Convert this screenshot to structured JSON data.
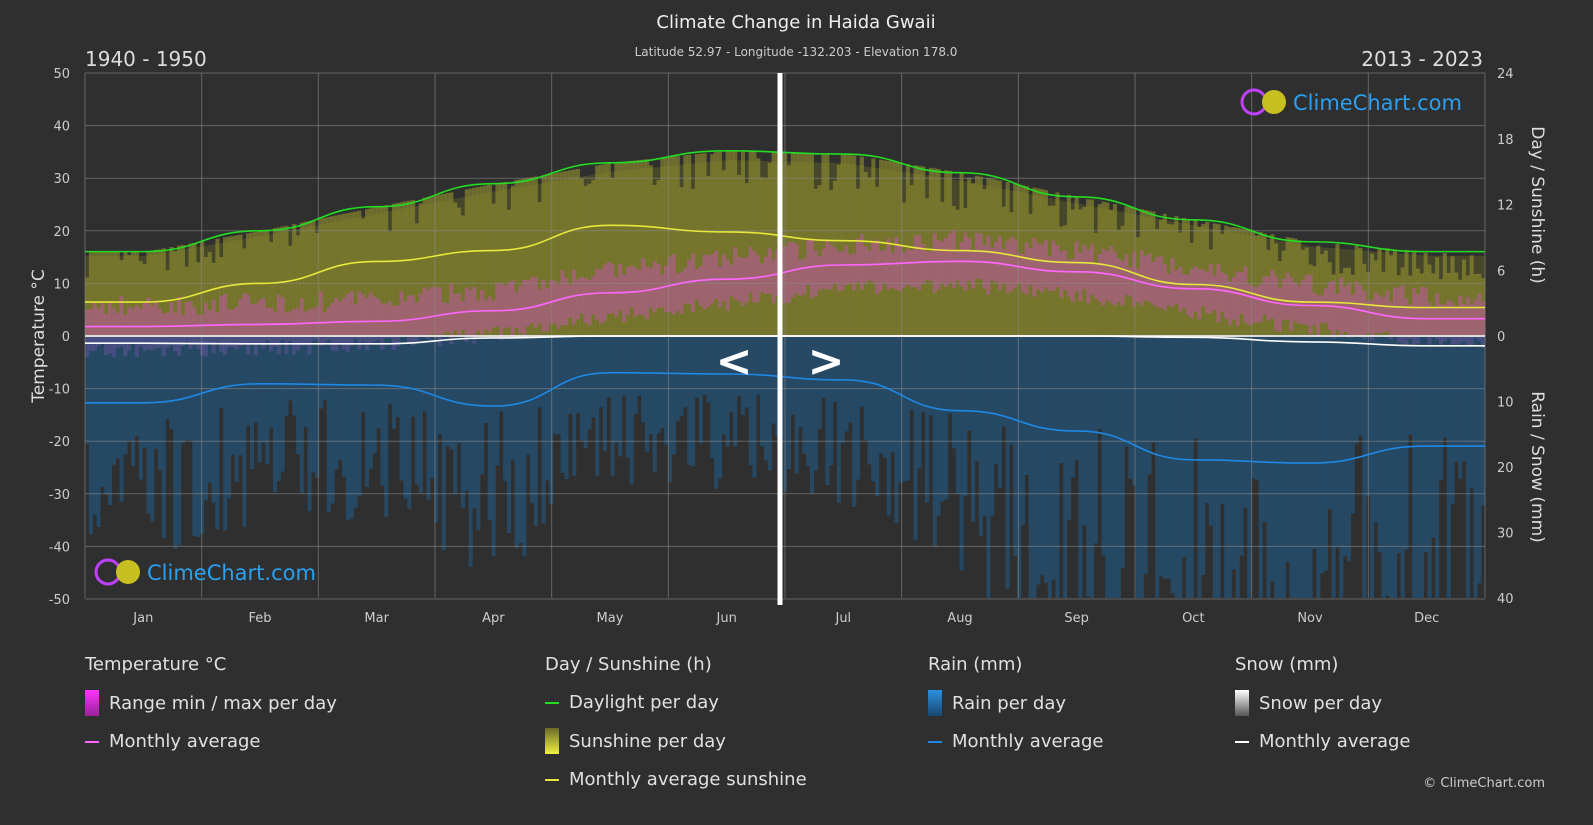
{
  "chart_data": {
    "type": "line",
    "title": "Climate Change in Haida Gwaii",
    "subtitle": "Latitude 52.97 - Longitude -132.203 - Elevation 178.0",
    "period_left": "1940 - 1950",
    "period_right": "2013 - 2023",
    "categories": [
      "Jan",
      "Feb",
      "Mar",
      "Apr",
      "May",
      "Jun",
      "Jul",
      "Aug",
      "Sep",
      "Oct",
      "Nov",
      "Dec"
    ],
    "y_left": {
      "label": "Temperature °C",
      "range": [
        -50,
        50
      ],
      "ticks": [
        "50",
        "40",
        "30",
        "20",
        "10",
        "0",
        "-10",
        "-20",
        "-30",
        "-40",
        "-50"
      ]
    },
    "y_right_top": {
      "label": "Day / Sunshine (h)",
      "range": [
        0,
        24
      ],
      "ticks": [
        "24",
        "18",
        "12",
        "6",
        "0"
      ]
    },
    "y_right_bottom": {
      "label": "Rain / Snow (mm)",
      "range": [
        0,
        40
      ],
      "ticks": [
        "10",
        "20",
        "30",
        "40"
      ]
    },
    "grid": true,
    "series": [
      {
        "name": "Daylight per day",
        "axis": "hours",
        "color": "#22dd22",
        "values": [
          7.7,
          9.6,
          11.8,
          13.9,
          15.8,
          16.9,
          16.6,
          14.9,
          12.7,
          10.6,
          8.6,
          7.7
        ]
      },
      {
        "name": "Monthly average sunshine",
        "axis": "hours",
        "color": "#e8e83a",
        "values": [
          3.1,
          4.8,
          6.8,
          7.8,
          10.1,
          9.5,
          8.7,
          7.8,
          6.7,
          4.7,
          3.1,
          2.6
        ]
      },
      {
        "name": "Monthly average",
        "group": "Temperature °C",
        "axis": "temp",
        "color": "#ff66ff",
        "values": [
          1.8,
          2.2,
          2.8,
          4.8,
          8.2,
          10.8,
          13.5,
          14.2,
          12.2,
          9.0,
          5.8,
          3.3
        ]
      },
      {
        "name": "Monthly average",
        "group": "Rain (mm)",
        "axis": "rain",
        "color": "#1e88e5",
        "values": [
          10.2,
          7.3,
          7.5,
          10.7,
          5.6,
          5.8,
          6.7,
          11.4,
          14.5,
          18.9,
          19.4,
          16.8
        ]
      },
      {
        "name": "Monthly average",
        "group": "Snow (mm)",
        "axis": "rain",
        "color": "#ffffff",
        "values": [
          1.1,
          1.2,
          1.2,
          0.3,
          0,
          0,
          0,
          0,
          0,
          0.2,
          0.9,
          1.5
        ]
      }
    ],
    "legend_placement": "bottom"
  },
  "legend": {
    "temp": {
      "title": "Temperature °C",
      "range": "Range min / max per day",
      "avg": "Monthly average"
    },
    "sun": {
      "title": "Day / Sunshine (h)",
      "daylight": "Daylight per day",
      "sunshine": "Sunshine per day",
      "avg": "Monthly average sunshine"
    },
    "rain": {
      "title": "Rain (mm)",
      "per_day": "Rain per day",
      "avg": "Monthly average"
    },
    "snow": {
      "title": "Snow (mm)",
      "per_day": "Snow per day",
      "avg": "Monthly average"
    }
  },
  "nav": {
    "prev": "<",
    "next": ">"
  },
  "brand": "ClimeChart.com",
  "copyright": "© ClimeChart.com",
  "colors": {
    "bg": "#2f2f2f",
    "brand": "#2aa0f0",
    "daylight": "#22dd22",
    "sunshine": "#e8e83a",
    "temp": "#ff66ff",
    "rain": "#1e88e5",
    "snow": "#ffffff"
  }
}
